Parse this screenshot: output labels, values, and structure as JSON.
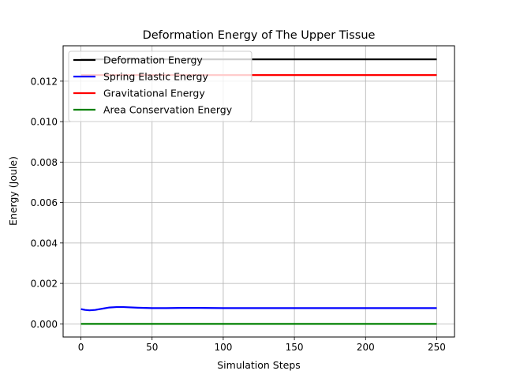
{
  "chart_data": {
    "type": "line",
    "title": "Deformation Energy of The Upper Tissue",
    "xlabel": "Simulation Steps",
    "ylabel": "Energy (Joule)",
    "xlim": [
      -12.5,
      262.5
    ],
    "ylim": [
      -0.00065,
      0.01375
    ],
    "xticks": [
      0,
      50,
      100,
      150,
      200,
      250
    ],
    "xtick_labels": [
      "0",
      "50",
      "100",
      "150",
      "200",
      "250"
    ],
    "yticks": [
      0.0,
      0.002,
      0.004,
      0.006,
      0.008,
      0.01,
      0.012
    ],
    "ytick_labels": [
      "0.000",
      "0.002",
      "0.004",
      "0.006",
      "0.008",
      "0.010",
      "0.012"
    ],
    "grid": true,
    "legend_position": "upper-left",
    "series": [
      {
        "name": "Deformation Energy",
        "color": "#000000",
        "x": [
          0,
          250
        ],
        "values": [
          0.01308,
          0.01308
        ]
      },
      {
        "name": "Spring Elastic Energy",
        "color": "#0000ff",
        "x": [
          0,
          3,
          6,
          10,
          15,
          20,
          25,
          30,
          40,
          50,
          60,
          70,
          80,
          100,
          150,
          200,
          250
        ],
        "values": [
          0.00073,
          0.00069,
          0.00067,
          0.00069,
          0.00075,
          0.00081,
          0.00083,
          0.00083,
          0.0008,
          0.00078,
          0.00078,
          0.00079,
          0.00079,
          0.00078,
          0.00078,
          0.00078,
          0.00078
        ]
      },
      {
        "name": "Gravitational Energy",
        "color": "#ff0000",
        "x": [
          0,
          250
        ],
        "values": [
          0.0123,
          0.0123
        ]
      },
      {
        "name": "Area Conservation Energy",
        "color": "#008000",
        "x": [
          0,
          250
        ],
        "values": [
          0.0,
          0.0
        ]
      }
    ]
  }
}
